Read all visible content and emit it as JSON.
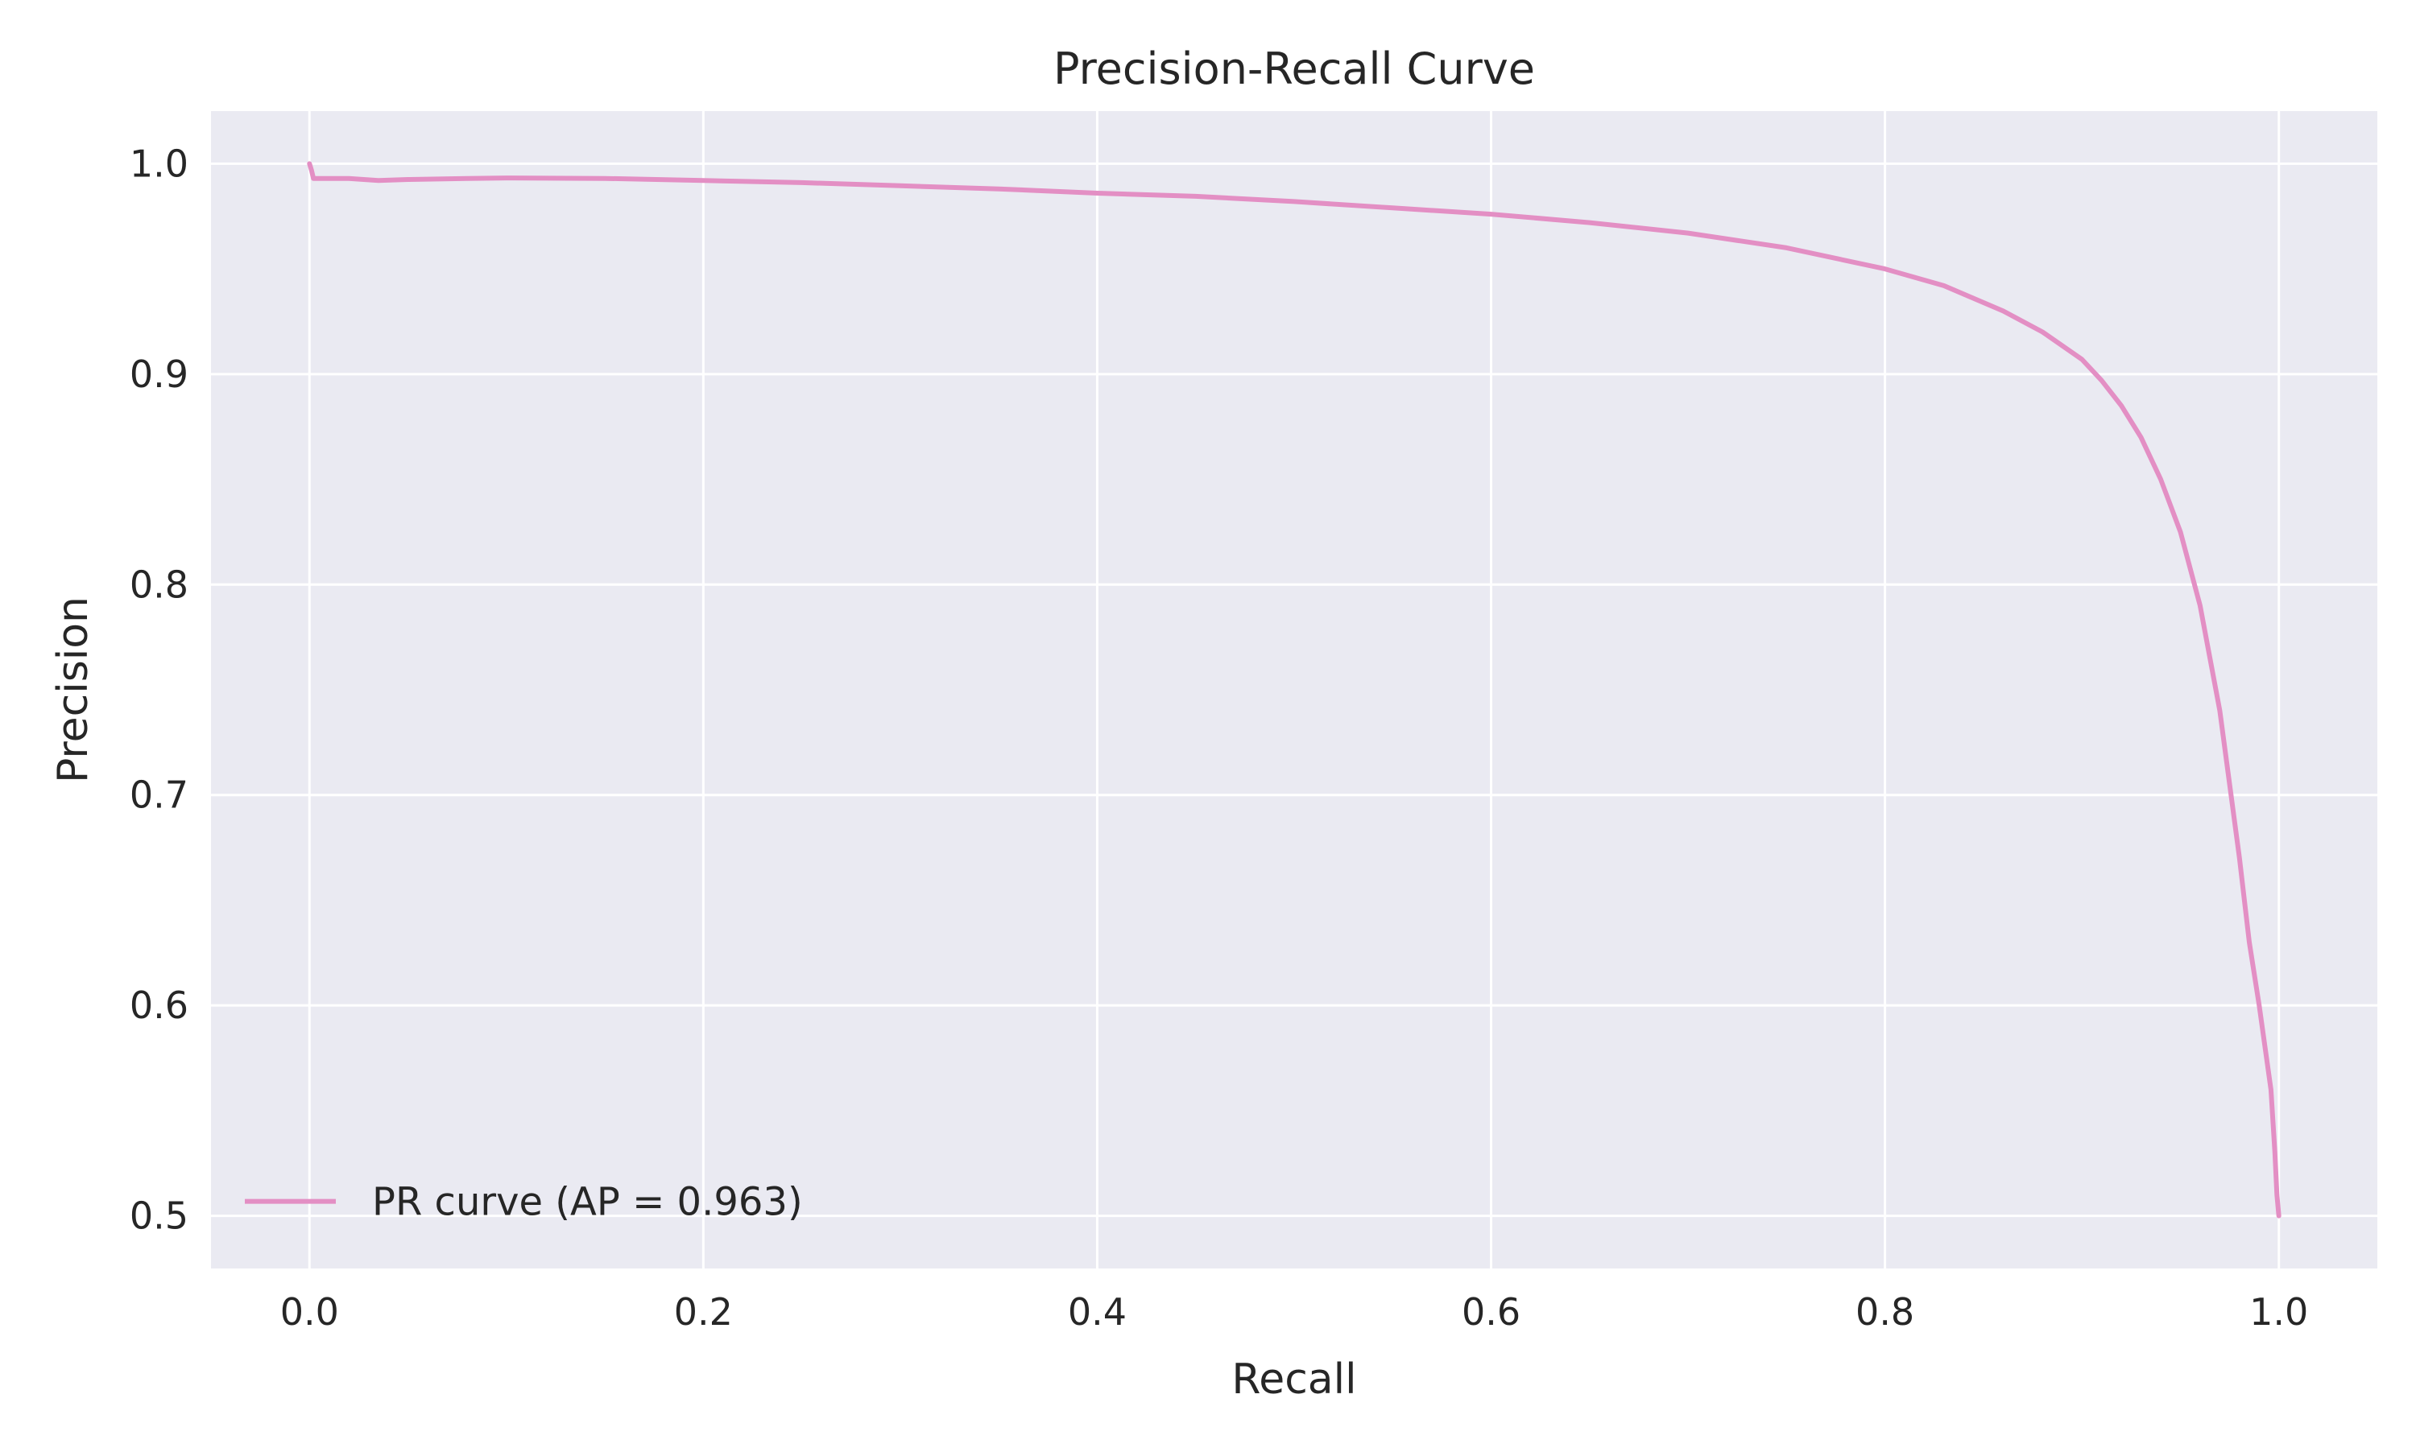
{
  "chart_data": {
    "type": "line",
    "title": "Precision-Recall Curve",
    "xlabel": "Recall",
    "ylabel": "Precision",
    "xlim": [
      -0.05,
      1.05
    ],
    "ylim": [
      0.475,
      1.025
    ],
    "xticks": [
      0.0,
      0.2,
      0.4,
      0.6,
      0.8,
      1.0
    ],
    "xtick_labels": [
      "0.0",
      "0.2",
      "0.4",
      "0.6",
      "0.8",
      "1.0"
    ],
    "yticks": [
      0.5,
      0.6,
      0.7,
      0.8,
      0.9,
      1.0
    ],
    "ytick_labels": [
      "0.5",
      "0.6",
      "0.7",
      "0.8",
      "0.9",
      "1.0"
    ],
    "grid": true,
    "background": "#eaeaf2",
    "legend_placement": "lower-left",
    "series": [
      {
        "name": "PR curve (AP = 0.963)",
        "color": "#e38fc4",
        "x": [
          0.0,
          0.001,
          0.002,
          0.01,
          0.02,
          0.035,
          0.05,
          0.08,
          0.1,
          0.15,
          0.2,
          0.25,
          0.3,
          0.35,
          0.4,
          0.45,
          0.5,
          0.55,
          0.6,
          0.65,
          0.7,
          0.75,
          0.8,
          0.83,
          0.86,
          0.88,
          0.9,
          0.91,
          0.92,
          0.93,
          0.94,
          0.95,
          0.96,
          0.97,
          0.975,
          0.98,
          0.985,
          0.99,
          0.993,
          0.996,
          0.998,
          0.999,
          1.0
        ],
        "y": [
          1.0,
          0.997,
          0.993,
          0.993,
          0.993,
          0.992,
          0.9925,
          0.993,
          0.9932,
          0.993,
          0.992,
          0.991,
          0.9895,
          0.988,
          0.986,
          0.9845,
          0.982,
          0.979,
          0.976,
          0.972,
          0.967,
          0.96,
          0.95,
          0.942,
          0.93,
          0.92,
          0.907,
          0.897,
          0.885,
          0.87,
          0.85,
          0.825,
          0.79,
          0.74,
          0.705,
          0.67,
          0.63,
          0.6,
          0.58,
          0.56,
          0.53,
          0.51,
          0.5
        ]
      }
    ]
  }
}
